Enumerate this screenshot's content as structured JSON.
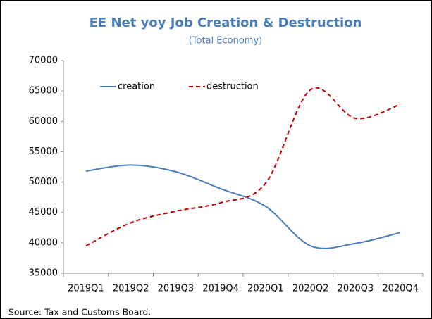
{
  "chart_data": {
    "type": "line",
    "title": "EE Net yoy Job Creation & Destruction",
    "subtitle": "(Total Economy)",
    "source": "Source: Tax and Customs Board.",
    "categories": [
      "2019Q1",
      "2019Q2",
      "2019Q3",
      "2019Q4",
      "2020Q1",
      "2020Q2",
      "2020Q3",
      "2020Q4"
    ],
    "series": [
      {
        "name": "creation",
        "color": "#4a7ebb",
        "dashed": false,
        "values": [
          51800,
          52800,
          51700,
          48900,
          46000,
          39500,
          39900,
          41700
        ]
      },
      {
        "name": "destruction",
        "color": "#c00000",
        "dashed": true,
        "values": [
          39500,
          43300,
          45200,
          46600,
          49800,
          65200,
          60500,
          62800
        ]
      }
    ],
    "ylim": [
      35000,
      70000
    ],
    "yticks": [
      35000,
      40000,
      45000,
      50000,
      55000,
      60000,
      65000,
      70000
    ],
    "grid": false,
    "legend": "top-left"
  }
}
